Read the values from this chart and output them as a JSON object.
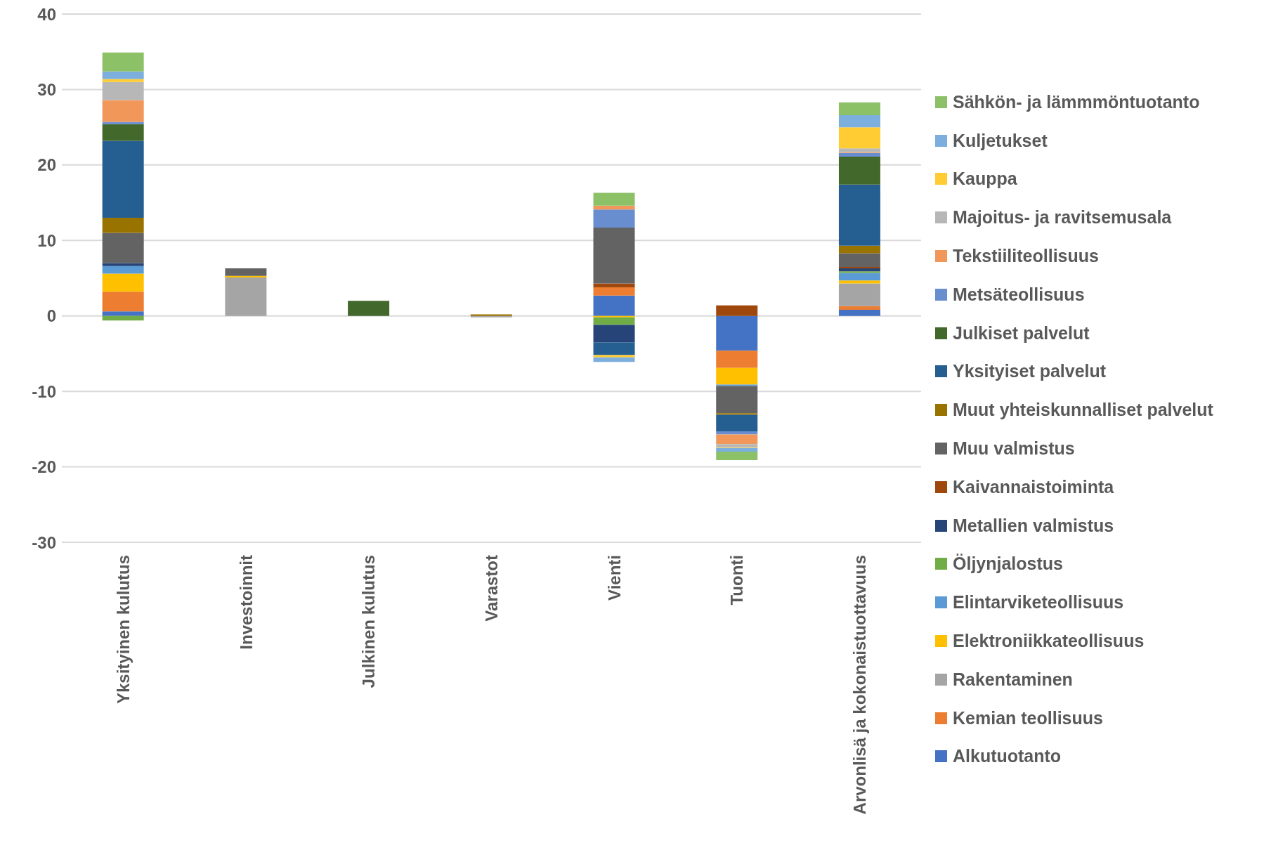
{
  "chart_data": {
    "type": "bar",
    "stacked": true,
    "categories": [
      "Yksityinen kulutus",
      "Investoinnit",
      "Julkinen kulutus",
      "Varastot",
      "Vienti",
      "Tuonti",
      "Arvonlisä ja kokonaistuottavuus"
    ],
    "ylim": [
      -30,
      40
    ],
    "yticks": [
      -30,
      -20,
      -10,
      0,
      10,
      20,
      30,
      40
    ],
    "grid": "y",
    "legend": "right",
    "series": [
      {
        "name": "Alkutuotanto",
        "color": "#4472c4",
        "values": [
          0.6,
          0,
          0,
          0,
          2.7,
          -4.6,
          0.8
        ]
      },
      {
        "name": "Kemian teollisuus",
        "color": "#ed7d31",
        "values": [
          2.6,
          0,
          0,
          0,
          1.1,
          -2.3,
          0.5
        ]
      },
      {
        "name": "Rakentaminen",
        "color": "#a5a5a5",
        "values": [
          0,
          5.1,
          0,
          -0.2,
          0,
          0,
          3.0
        ]
      },
      {
        "name": "Elektroniikkateollisuus",
        "color": "#ffc000",
        "values": [
          2.4,
          0.2,
          0,
          0,
          -0.2,
          -2.2,
          0.4
        ]
      },
      {
        "name": "Elintarviketeollisuus",
        "color": "#5b9bd5",
        "values": [
          1.0,
          0,
          0,
          0,
          0,
          -0.2,
          1.0
        ]
      },
      {
        "name": "Öljynjalostus",
        "color": "#70ad47",
        "values": [
          -0.6,
          0,
          0,
          0,
          -1.0,
          0,
          0.2
        ]
      },
      {
        "name": "Metallien valmistus",
        "color": "#264478",
        "values": [
          0.4,
          0,
          0,
          0,
          -2.3,
          0,
          0.4
        ]
      },
      {
        "name": "Kaivannaistoiminta",
        "color": "#9e480e",
        "values": [
          0,
          0,
          0,
          0,
          0.5,
          1.4,
          0.2
        ]
      },
      {
        "name": "Muu valmistus",
        "color": "#636363",
        "values": [
          4.0,
          1.0,
          0,
          0,
          7.4,
          -3.6,
          1.8
        ]
      },
      {
        "name": "Muut yhteiskunnalliset palvelut",
        "color": "#997300",
        "values": [
          2.0,
          0,
          0,
          0.2,
          0,
          -0.2,
          1.0
        ]
      },
      {
        "name": "Yksityiset palvelut",
        "color": "#255e91",
        "values": [
          10.2,
          0,
          0,
          0,
          -1.7,
          -2.2,
          8.1
        ]
      },
      {
        "name": "Julkiset palvelut",
        "color": "#43682b",
        "values": [
          2.2,
          0,
          2.0,
          0,
          0,
          0,
          3.7
        ]
      },
      {
        "name": "Metsäteollisuus",
        "color": "#698ed0",
        "values": [
          0.3,
          0,
          0,
          0,
          2.4,
          -0.4,
          0.5
        ]
      },
      {
        "name": "Tekstiiliteollisuus",
        "color": "#f1975a",
        "values": [
          2.9,
          0,
          0,
          0,
          0.5,
          -1.3,
          0.1
        ]
      },
      {
        "name": "Majoitus- ja ravitsemusala",
        "color": "#b7b7b7",
        "values": [
          2.4,
          0,
          0,
          0,
          0,
          -0.4,
          0.5
        ]
      },
      {
        "name": "Kauppa",
        "color": "#ffcd33",
        "values": [
          0.4,
          0,
          0,
          0,
          -0.3,
          -0.1,
          2.8
        ]
      },
      {
        "name": "Kuljetukset",
        "color": "#7cafdd",
        "values": [
          1.0,
          0,
          0,
          0,
          -0.6,
          -0.5,
          1.6
        ]
      },
      {
        "name": "Sähkön- ja lämmmöntuotanto",
        "color": "#8cc168",
        "values": [
          2.5,
          0,
          0,
          0,
          1.7,
          -1.1,
          1.7
        ]
      }
    ]
  }
}
